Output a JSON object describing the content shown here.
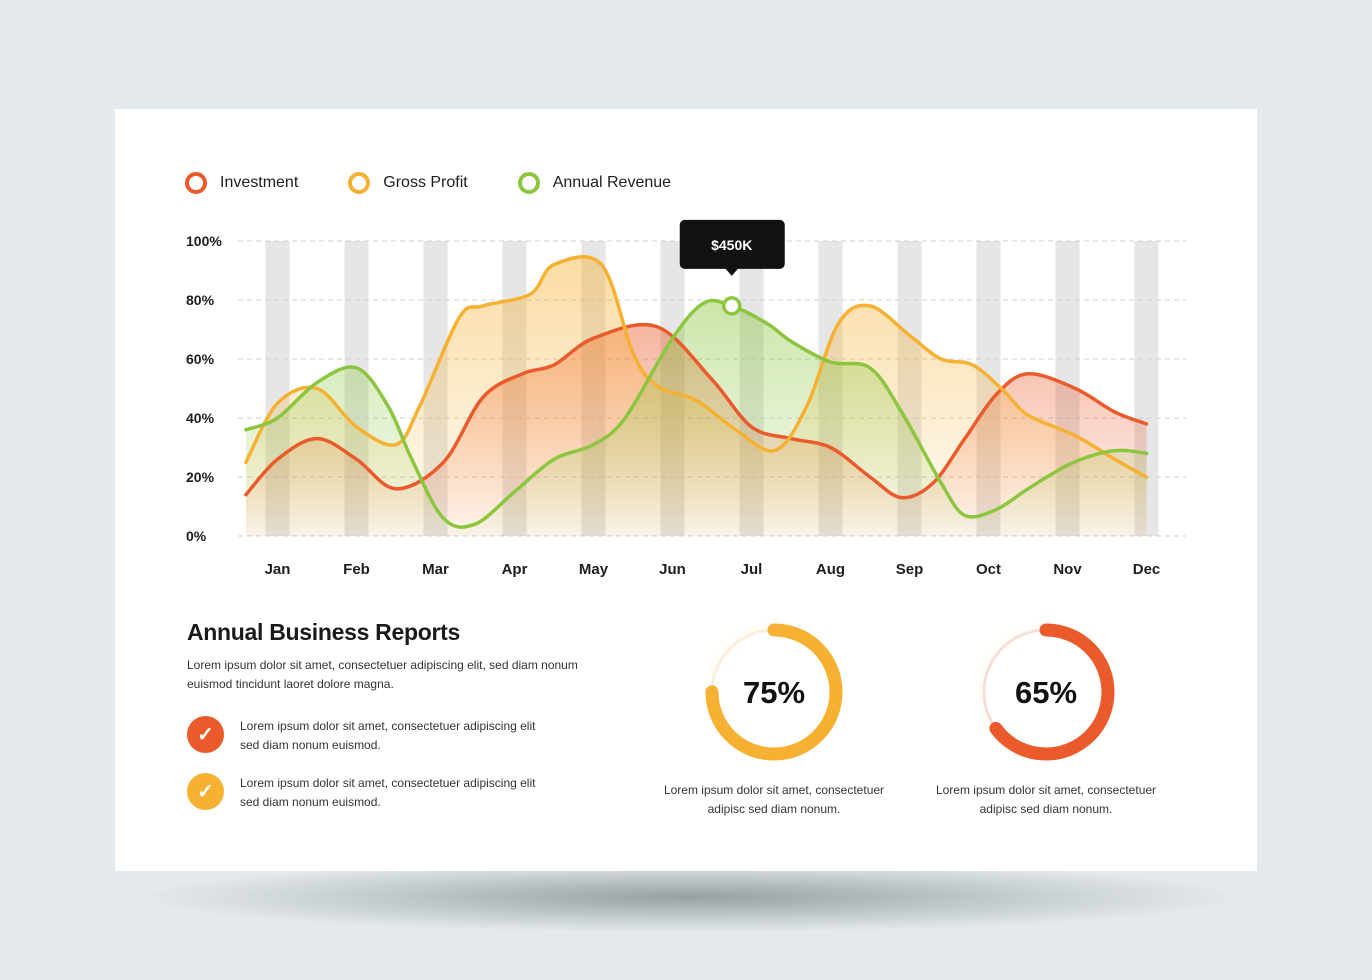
{
  "legend": [
    {
      "name": "Investment",
      "color": "#ea5a2a"
    },
    {
      "name": "Gross Profit",
      "color": "#f6b032"
    },
    {
      "name": "Annual Revenue",
      "color": "#8cc63f"
    }
  ],
  "chart_data": {
    "type": "area",
    "categories": [
      "Jan",
      "Feb",
      "Mar",
      "Apr",
      "May",
      "Jun",
      "Jul",
      "Aug",
      "Sep",
      "Oct",
      "Nov",
      "Dec"
    ],
    "y_ticks": [
      "100%",
      "80%",
      "60%",
      "40%",
      "20%",
      "0%"
    ],
    "ylim": [
      0,
      100
    ],
    "grid": true,
    "legend_position": "top-left",
    "series": [
      {
        "name": "Investment",
        "color": "#ea5a2a",
        "x": [
          0.1,
          0.5,
          1.0,
          1.5,
          2.0,
          2.6,
          3.1,
          3.6,
          4.0,
          4.5,
          5.3,
          6.0,
          6.5,
          7.0,
          7.5,
          8.0,
          8.4,
          8.8,
          9.2,
          9.6,
          10.0,
          10.6,
          11.1,
          11.5
        ],
        "y": [
          14,
          26,
          33,
          26,
          16,
          25,
          47,
          55,
          58,
          67,
          71,
          53,
          37,
          33,
          30,
          20,
          13,
          18,
          33,
          48,
          55,
          50,
          42,
          38
        ]
      },
      {
        "name": "Gross Profit",
        "color": "#f6b032",
        "x": [
          0.1,
          0.5,
          1.0,
          1.5,
          2.0,
          2.3,
          2.8,
          3.1,
          3.7,
          4.0,
          4.6,
          5.0,
          5.3,
          5.8,
          6.3,
          6.8,
          7.2,
          7.6,
          8.0,
          8.5,
          8.9,
          9.3,
          9.7,
          10.0,
          10.6,
          11.1,
          11.5
        ],
        "y": [
          25,
          45,
          50,
          37,
          31,
          44,
          74,
          78,
          82,
          92,
          92,
          62,
          51,
          46,
          36,
          29,
          44,
          72,
          78,
          68,
          60,
          58,
          49,
          41,
          34,
          26,
          20
        ]
      },
      {
        "name": "Annual Revenue",
        "color": "#8cc63f",
        "x": [
          0.1,
          0.5,
          1.0,
          1.5,
          1.9,
          2.2,
          2.6,
          3.0,
          3.5,
          4.0,
          4.5,
          4.9,
          5.5,
          5.9,
          6.25,
          6.7,
          7.0,
          7.5,
          8.0,
          8.4,
          8.9,
          9.2,
          9.6,
          10.0,
          10.5,
          10.9,
          11.2,
          11.5
        ],
        "y": [
          36,
          40,
          52,
          57,
          44,
          26,
          6,
          4,
          15,
          26,
          31,
          40,
          67,
          79,
          78,
          72,
          66,
          59,
          57,
          42,
          18,
          7,
          9,
          16,
          24,
          28,
          29,
          28
        ]
      }
    ],
    "annotation": {
      "label": "$450K",
      "series": "Annual Revenue",
      "x": 6.25,
      "y": 78
    }
  },
  "report": {
    "title": "Annual Business Reports",
    "description": "Lorem ipsum dolor sit amet, consectetuer adipiscing elit, sed diam nonum euismod tincidunt laoret dolore magna.",
    "items": [
      {
        "text": "Lorem ipsum dolor sit amet, consectetuer adipiscing elit sed diam nonum euismod.",
        "color": "#ea5a2a",
        "icon": "check-icon",
        "glyph": "✓"
      },
      {
        "text": "Lorem ipsum dolor sit amet, consectetuer adipiscing elit sed diam nonum euismod.",
        "color": "#f6b032",
        "icon": "check-icon",
        "glyph": "✓"
      }
    ]
  },
  "donuts": [
    {
      "value": 75,
      "label": "75%",
      "color": "#f6b032",
      "track": "#fbeedd",
      "caption": "Lorem ipsum dolor sit amet, consectetuer adipisc sed diam nonum."
    },
    {
      "value": 65,
      "label": "65%",
      "color": "#ea5a2a",
      "track": "#f6dfd6",
      "caption": "Lorem ipsum dolor sit amet, consectetuer adipisc sed diam nonum."
    }
  ]
}
